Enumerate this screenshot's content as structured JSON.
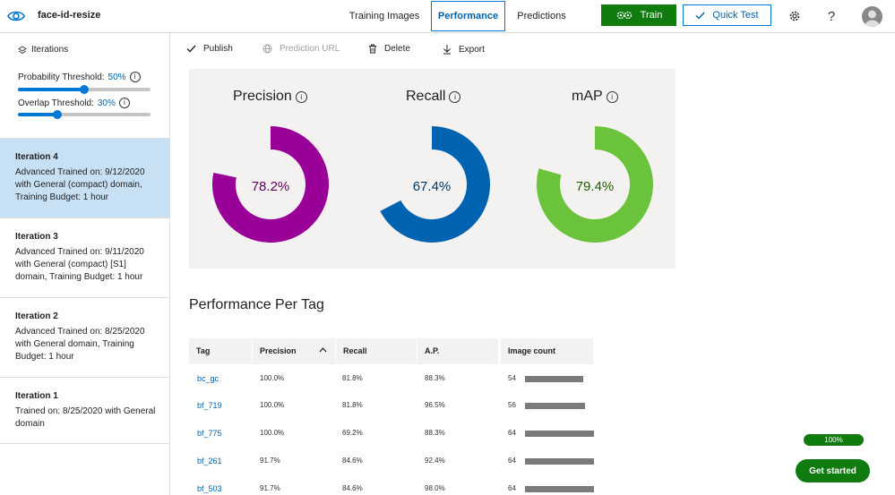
{
  "header": {
    "project_name": "face-id-resize",
    "tabs": [
      {
        "label": "Training Images",
        "active": false
      },
      {
        "label": "Performance",
        "active": true
      },
      {
        "label": "Predictions",
        "active": false
      }
    ],
    "train_label": "Train",
    "quick_test_label": "Quick Test",
    "icons": [
      "eye-icon",
      "gear-icon",
      "help-icon",
      "avatar"
    ]
  },
  "sidebar": {
    "heading": "Iterations",
    "probability_threshold": {
      "label": "Probability Threshold:",
      "value": "50%",
      "level": 0.5
    },
    "overlap_threshold": {
      "label": "Overlap Threshold:",
      "value": "30%",
      "level": 0.3
    },
    "iterations": [
      {
        "title": "Iteration 4",
        "description": "Advanced Trained on: 9/12/2020 with General (compact) domain, Training Budget: 1 hour",
        "selected": true
      },
      {
        "title": "Iteration 3",
        "description": "Advanced Trained on: 9/11/2020 with General (compact) [S1] domain, Training Budget: 1 hour",
        "selected": false
      },
      {
        "title": "Iteration 2",
        "description": "Advanced Trained on: 8/25/2020 with General domain, Training Budget: 1 hour",
        "selected": false
      },
      {
        "title": "Iteration 1",
        "description": "Trained on: 8/25/2020 with General domain",
        "selected": false
      }
    ]
  },
  "toolbar": {
    "publish": "Publish",
    "prediction_url": "Prediction URL",
    "delete": "Delete",
    "export": "Export"
  },
  "metrics": [
    {
      "name": "Precision",
      "value": "78.2%",
      "fraction": 0.782,
      "color": "#980097",
      "text_color": "#5c005c"
    },
    {
      "name": "Recall",
      "value": "67.4%",
      "fraction": 0.674,
      "color": "#0063b1",
      "text_color": "#003966"
    },
    {
      "name": "mAP",
      "value": "79.4%",
      "fraction": 0.794,
      "color": "#6bc33b",
      "text_color": "#1e5b00"
    }
  ],
  "per_tag": {
    "title": "Performance Per Tag",
    "columns": [
      "Tag",
      "Precision",
      "Recall",
      "A.P.",
      "Image count"
    ],
    "max_count": 64,
    "rows": [
      {
        "tag": "bc_gc",
        "precision": "100.0%",
        "recall": "81.8%",
        "ap": "88.3%",
        "count": "54",
        "count_value": 54
      },
      {
        "tag": "bf_719",
        "precision": "100.0%",
        "recall": "81.8%",
        "ap": "96.5%",
        "count": "56",
        "count_value": 56
      },
      {
        "tag": "bf_775",
        "precision": "100.0%",
        "recall": "69.2%",
        "ap": "88.3%",
        "count": "64",
        "count_value": 64
      },
      {
        "tag": "bf_261",
        "precision": "91.7%",
        "recall": "84.6%",
        "ap": "92.4%",
        "count": "64",
        "count_value": 64
      },
      {
        "tag": "bf_503",
        "precision": "91.7%",
        "recall": "84.6%",
        "ap": "98.0%",
        "count": "64",
        "count_value": 64
      }
    ]
  },
  "onboarding": {
    "progress": "100%",
    "get_started": "Get started"
  }
}
